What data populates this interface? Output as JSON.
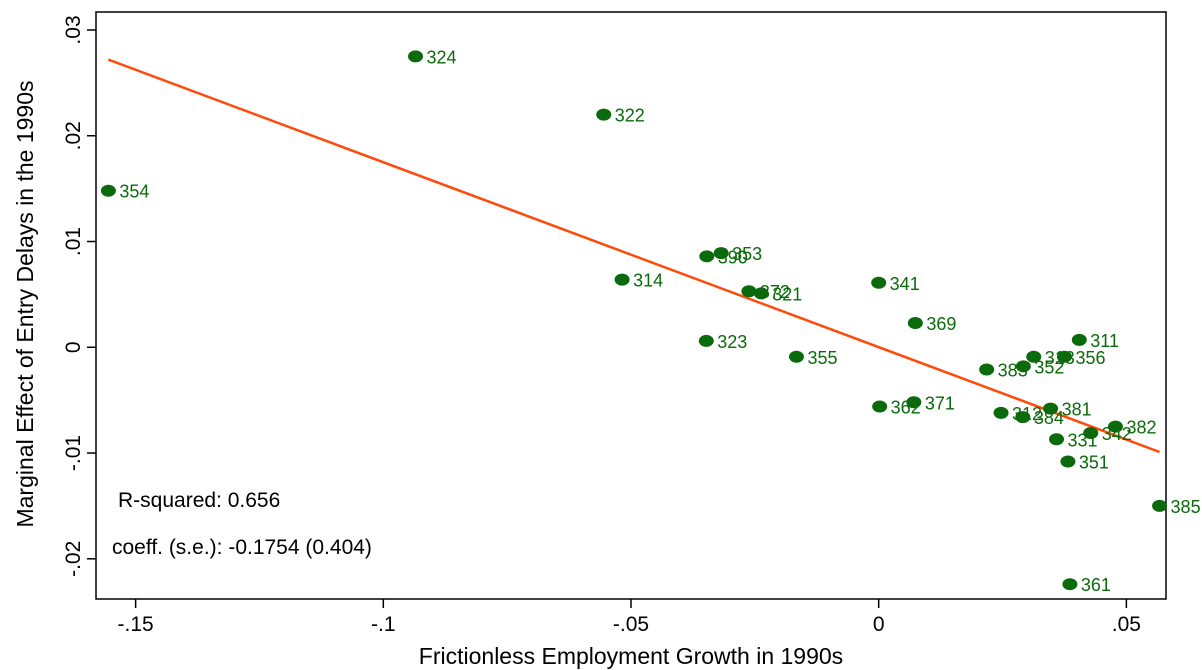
{
  "chart_data": {
    "type": "scatter",
    "xlabel": "Frictionless Employment Growth in 1990s",
    "ylabel": "Marginal Effect of Entry Delays in the 1990s",
    "xlim": [
      -0.158,
      0.058
    ],
    "ylim": [
      -0.0238,
      0.0317
    ],
    "x_ticks": [
      {
        "value": -0.15,
        "label": "-.15"
      },
      {
        "value": -0.1,
        "label": "-.1"
      },
      {
        "value": -0.05,
        "label": "-.05"
      },
      {
        "value": 0,
        "label": "0"
      },
      {
        "value": 0.05,
        "label": ".05"
      }
    ],
    "y_ticks": [
      {
        "value": -0.02,
        "label": "-.02"
      },
      {
        "value": -0.01,
        "label": "-.01"
      },
      {
        "value": 0,
        "label": "0"
      },
      {
        "value": 0.01,
        "label": ".01"
      },
      {
        "value": 0.02,
        "label": ".02"
      },
      {
        "value": 0.03,
        "label": ".03"
      }
    ],
    "grid": false,
    "points": [
      {
        "label": "324",
        "x": -0.0935,
        "y": 0.0275
      },
      {
        "label": "322",
        "x": -0.0555,
        "y": 0.022
      },
      {
        "label": "354",
        "x": -0.1555,
        "y": 0.0148
      },
      {
        "label": "353",
        "x": -0.0318,
        "y": 0.0089
      },
      {
        "label": "390",
        "x": -0.0347,
        "y": 0.0086
      },
      {
        "label": "314",
        "x": -0.0518,
        "y": 0.0064
      },
      {
        "label": "372",
        "x": -0.0262,
        "y": 0.0053
      },
      {
        "label": "321",
        "x": -0.0237,
        "y": 0.0051
      },
      {
        "label": "341",
        "x": 0.0,
        "y": 0.0061
      },
      {
        "label": "369",
        "x": 0.0074,
        "y": 0.0023
      },
      {
        "label": "323",
        "x": -0.0348,
        "y": 0.0006
      },
      {
        "label": "355",
        "x": -0.0166,
        "y": -0.0009
      },
      {
        "label": "311",
        "x": 0.0405,
        "y": 0.0007
      },
      {
        "label": "313",
        "x": 0.0313,
        "y": -0.0009
      },
      {
        "label": "356",
        "x": 0.0375,
        "y": -0.0009
      },
      {
        "label": "352",
        "x": 0.0292,
        "y": -0.0018
      },
      {
        "label": "383",
        "x": 0.0218,
        "y": -0.0021
      },
      {
        "label": "371",
        "x": 0.0071,
        "y": -0.0052
      },
      {
        "label": "362",
        "x": 0.0002,
        "y": -0.0056
      },
      {
        "label": "381",
        "x": 0.0347,
        "y": -0.0058
      },
      {
        "label": "312",
        "x": 0.0247,
        "y": -0.0062
      },
      {
        "label": "384",
        "x": 0.0291,
        "y": -0.0066
      },
      {
        "label": "382",
        "x": 0.0478,
        "y": -0.0075
      },
      {
        "label": "342",
        "x": 0.0428,
        "y": -0.0081
      },
      {
        "label": "331",
        "x": 0.0359,
        "y": -0.0087
      },
      {
        "label": "351",
        "x": 0.0382,
        "y": -0.0108
      },
      {
        "label": "385",
        "x": 0.0567,
        "y": -0.015
      },
      {
        "label": "361",
        "x": 0.0386,
        "y": -0.0224
      }
    ],
    "fit_line": {
      "x": [
        -0.1555,
        0.0567
      ],
      "y": [
        0.0272,
        -0.0099
      ]
    },
    "annotations": [
      "R-squared: 0.656",
      "coeff. (s.e.): -0.1754 (0.404)"
    ],
    "colors": {
      "points": "#0b6a0b",
      "labels": "#0b6a0b",
      "fit_line": "#ff4a0a",
      "axes": "#000000"
    }
  }
}
